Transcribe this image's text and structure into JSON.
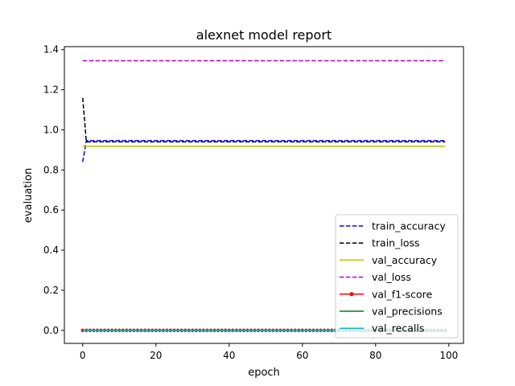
{
  "chart_data": {
    "type": "line",
    "title": "alexnet model report",
    "xlabel": "epoch",
    "ylabel": "evaluation",
    "xlim": [
      -5,
      104
    ],
    "ylim": [
      -0.065,
      1.415
    ],
    "xticks": [
      0,
      20,
      40,
      60,
      80,
      100
    ],
    "yticks": [
      0.0,
      0.2,
      0.4,
      0.6,
      0.8,
      1.0,
      1.2,
      1.4
    ],
    "xtick_labels": [
      "0",
      "20",
      "40",
      "60",
      "80",
      "100"
    ],
    "ytick_labels": [
      "0.0",
      "0.2",
      "0.4",
      "0.6",
      "0.8",
      "1.0",
      "1.2",
      "1.4"
    ],
    "grid": false,
    "legend_position": "lower-right",
    "epochs": 100,
    "series": [
      {
        "name": "train_accuracy",
        "color": "#0000ff",
        "style": "dashed",
        "values_start": [
          0.84
        ],
        "steady_value": 0.946
      },
      {
        "name": "train_loss",
        "color": "#000000",
        "style": "dashed",
        "values_start": [
          1.16
        ],
        "steady_value": 0.94
      },
      {
        "name": "val_accuracy",
        "color": "#bfbf00",
        "style": "solid",
        "values_start": [],
        "steady_value": 0.918
      },
      {
        "name": "val_loss",
        "color": "#bf00bf",
        "style": "dashed",
        "values_start": [],
        "steady_value": 1.345
      },
      {
        "name": "val_f1-score",
        "color": "#ff0000",
        "style": "solid-marker",
        "values_start": [],
        "steady_value": 0.0
      },
      {
        "name": "val_precisions",
        "color": "#008000",
        "style": "solid",
        "values_start": [],
        "steady_value": 0.0
      },
      {
        "name": "val_recalls",
        "color": "#00bfbf",
        "style": "solid",
        "values_start": [],
        "steady_value": 0.0
      }
    ]
  }
}
